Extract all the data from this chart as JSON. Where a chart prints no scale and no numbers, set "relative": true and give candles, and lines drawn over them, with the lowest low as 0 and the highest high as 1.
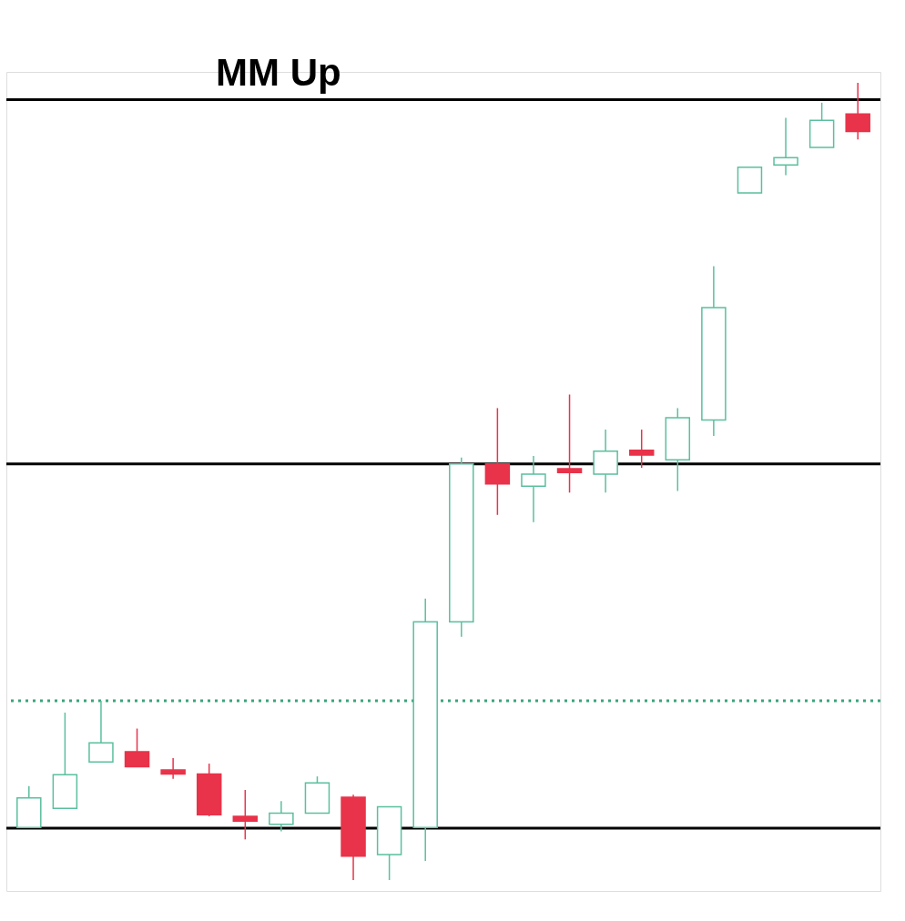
{
  "chart_data": {
    "type": "candlestick",
    "relative": true,
    "categories": [
      null,
      null,
      null,
      null,
      null,
      null,
      null,
      null,
      null,
      null,
      null,
      null,
      null,
      null,
      null,
      null,
      null,
      null,
      null,
      null,
      null,
      null,
      null,
      null
    ],
    "ohlc": [
      [
        0.066,
        0.118,
        0.066,
        0.103
      ],
      [
        0.09,
        0.21,
        0.09,
        0.132
      ],
      [
        0.148,
        0.225,
        0.148,
        0.172
      ],
      [
        0.161,
        0.19,
        0.142,
        0.142
      ],
      [
        0.138,
        0.153,
        0.127,
        0.133
      ],
      [
        0.133,
        0.146,
        0.08,
        0.082
      ],
      [
        0.08,
        0.113,
        0.051,
        0.074
      ],
      [
        0.07,
        0.099,
        0.061,
        0.084
      ],
      [
        0.084,
        0.13,
        0.084,
        0.122
      ],
      [
        0.104,
        0.107,
        0.0,
        0.03
      ],
      [
        0.032,
        0.092,
        0.0,
        0.092
      ],
      [
        0.066,
        0.353,
        0.024,
        0.324
      ],
      [
        0.324,
        0.53,
        0.305,
        0.522
      ],
      [
        0.522,
        0.592,
        0.458,
        0.497
      ],
      [
        0.494,
        0.532,
        0.449,
        0.509
      ],
      [
        0.516,
        0.609,
        0.486,
        0.511
      ],
      [
        0.509,
        0.565,
        0.486,
        0.538
      ],
      [
        0.539,
        0.565,
        0.517,
        0.533
      ],
      [
        0.527,
        0.592,
        0.488,
        0.58
      ],
      [
        0.577,
        0.77,
        0.557,
        0.718
      ],
      [
        0.862,
        0.894,
        0.862,
        0.894
      ],
      [
        0.897,
        0.956,
        0.884,
        0.906
      ],
      [
        0.919,
        0.975,
        0.919,
        0.953
      ],
      [
        0.961,
        1.0,
        0.929,
        0.939
      ]
    ],
    "colors": [
      "#5bbf9f",
      "#5bbf9f",
      "#5bbf9f",
      "#e8334a",
      "#e8334a",
      "#e8334a",
      "#e8334a",
      "#5bbf9f",
      "#5bbf9f",
      "#e8334a",
      "#5bbf9f",
      "#5bbf9f",
      "#5bbf9f",
      "#e8334a",
      "#5bbf9f",
      "#e8334a",
      "#5bbf9f",
      "#e8334a",
      "#5bbf9f",
      "#5bbf9f",
      "#5bbf9f",
      "#5bbf9f",
      "#5bbf9f",
      "#e8334a"
    ],
    "ref_lines": [
      {
        "axis": "y",
        "value": 0.225,
        "color": "#3aa57a",
        "line_style": "dotted"
      },
      {
        "axis": "y",
        "value": 0.522,
        "color": "#000000",
        "line_style": "solid"
      },
      {
        "axis": "y",
        "value": 0.065,
        "color": "#000000",
        "line_style": "solid"
      },
      {
        "axis": "y",
        "value": 0.979,
        "color": "#000000",
        "line_style": "solid",
        "label": "MM Up"
      }
    ]
  }
}
